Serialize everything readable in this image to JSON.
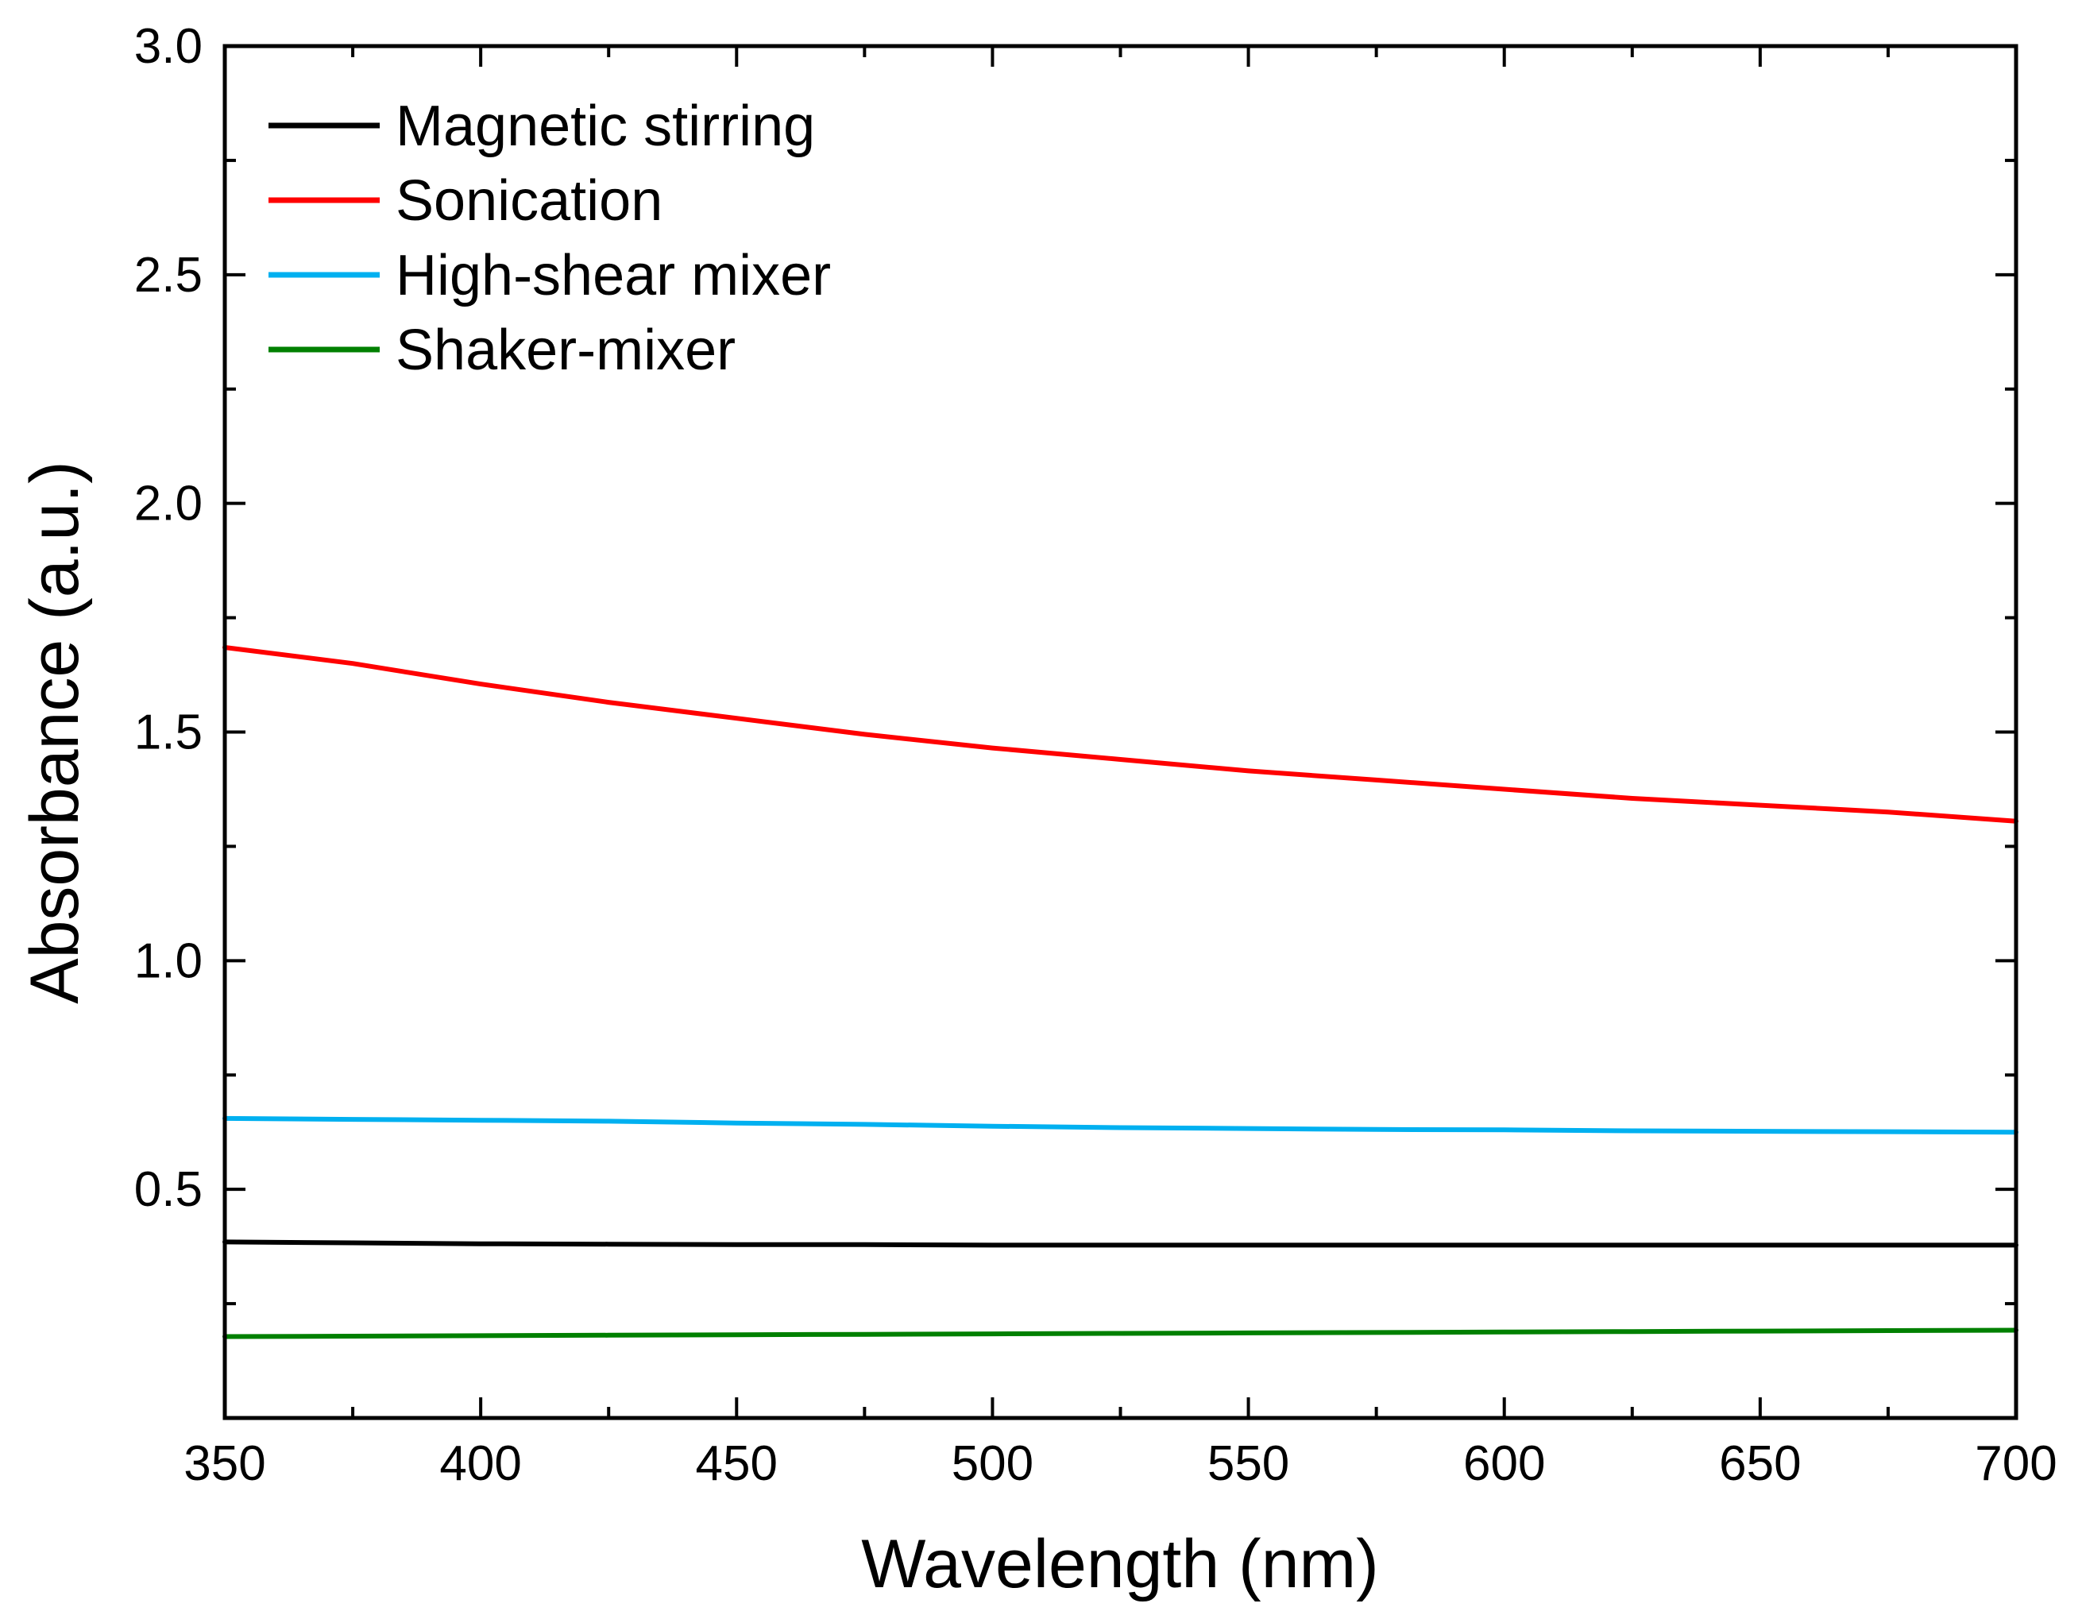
{
  "chart_data": {
    "type": "line",
    "title": "",
    "xlabel": "Wavelength (nm)",
    "ylabel": "Absorbance (a.u.)",
    "xlim": [
      350,
      700
    ],
    "ylim": [
      0,
      3.0
    ],
    "xticks": [
      "350",
      "400",
      "450",
      "500",
      "550",
      "600",
      "650",
      "700"
    ],
    "yticks": [
      "0.5",
      "1.0",
      "1.5",
      "2.0",
      "2.5",
      "3.0"
    ],
    "grid": false,
    "legend_position": "top-left",
    "x": [
      350,
      375,
      400,
      425,
      450,
      475,
      500,
      525,
      550,
      575,
      600,
      625,
      650,
      675,
      700
    ],
    "series": [
      {
        "name": "Magnetic stirring",
        "color": "#000000",
        "values": [
          0.385,
          0.383,
          0.381,
          0.38,
          0.379,
          0.379,
          0.378,
          0.378,
          0.378,
          0.378,
          0.378,
          0.378,
          0.378,
          0.378,
          0.378
        ]
      },
      {
        "name": "Sonication",
        "color": "#ff0000",
        "values": [
          1.685,
          1.65,
          1.605,
          1.565,
          1.53,
          1.495,
          1.465,
          1.44,
          1.415,
          1.395,
          1.375,
          1.355,
          1.34,
          1.325,
          1.305
        ]
      },
      {
        "name": "High-shear mixer",
        "color": "#00b0f0",
        "values": [
          0.655,
          0.653,
          0.651,
          0.649,
          0.645,
          0.642,
          0.638,
          0.635,
          0.633,
          0.631,
          0.63,
          0.628,
          0.627,
          0.626,
          0.625
        ]
      },
      {
        "name": "Shaker-mixer",
        "color": "#008000",
        "values": [
          0.178,
          0.179,
          0.18,
          0.181,
          0.182,
          0.183,
          0.184,
          0.185,
          0.186,
          0.187,
          0.188,
          0.189,
          0.19,
          0.191,
          0.192
        ]
      }
    ]
  }
}
